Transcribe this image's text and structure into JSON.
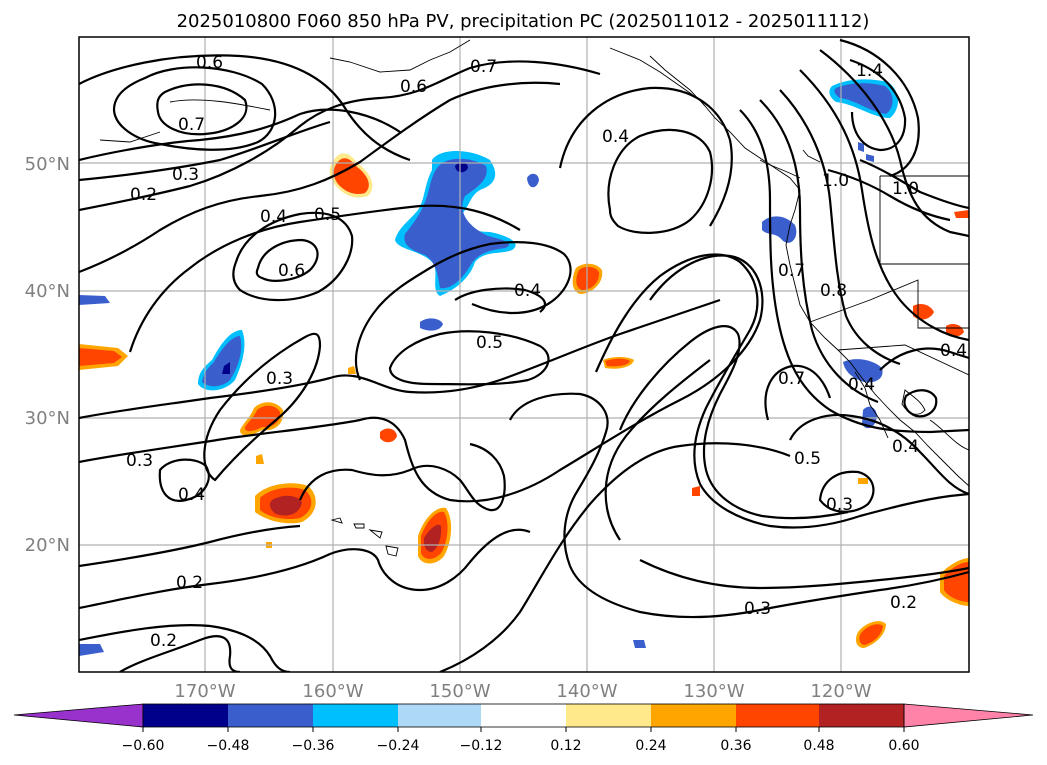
{
  "title": "2025010800 F060 850 hPa PV, precipitation PC (2025011012 - 2025011112)",
  "lat_labels": [
    "50°N",
    "40°N",
    "30°N",
    "20°N"
  ],
  "lon_labels": [
    "170°W",
    "160°W",
    "150°W",
    "140°W",
    "130°W",
    "120°W"
  ],
  "contour_labels": [
    "0.6",
    "0.7",
    "0.7",
    "0.6",
    "0.3",
    "0.2",
    "0.4",
    "0.5",
    "0.6",
    "0.4",
    "0.4",
    "0.5",
    "0.3",
    "0.3",
    "0.4",
    "0.2",
    "0.2",
    "0.3",
    "0.2",
    "0.4",
    "0.5",
    "0.7",
    "0.4",
    "0.3",
    "0.8",
    "0.7",
    "1.0",
    "1.0",
    "1.4",
    "0.4"
  ],
  "colorbar": {
    "ticks": [
      "−0.60",
      "−0.48",
      "−0.36",
      "−0.24",
      "−0.12",
      "0.12",
      "0.24",
      "0.36",
      "0.48",
      "0.60"
    ],
    "colors": [
      "#9932cc",
      "#00008b",
      "#3a5fcd",
      "#00bfff",
      "#add8f6",
      "#ffffff",
      "#ffe98a",
      "#ffa500",
      "#ff4500",
      "#b22222",
      "#ff82a8"
    ]
  },
  "legend_colors": {
    "neg_dark": "#00008b",
    "neg_mid": "#3a5fcd",
    "neg_light": "#00bfff",
    "pos_light": "#ffe98a",
    "pos_mid": "#ff4500",
    "pos_dark": "#b22222"
  }
}
